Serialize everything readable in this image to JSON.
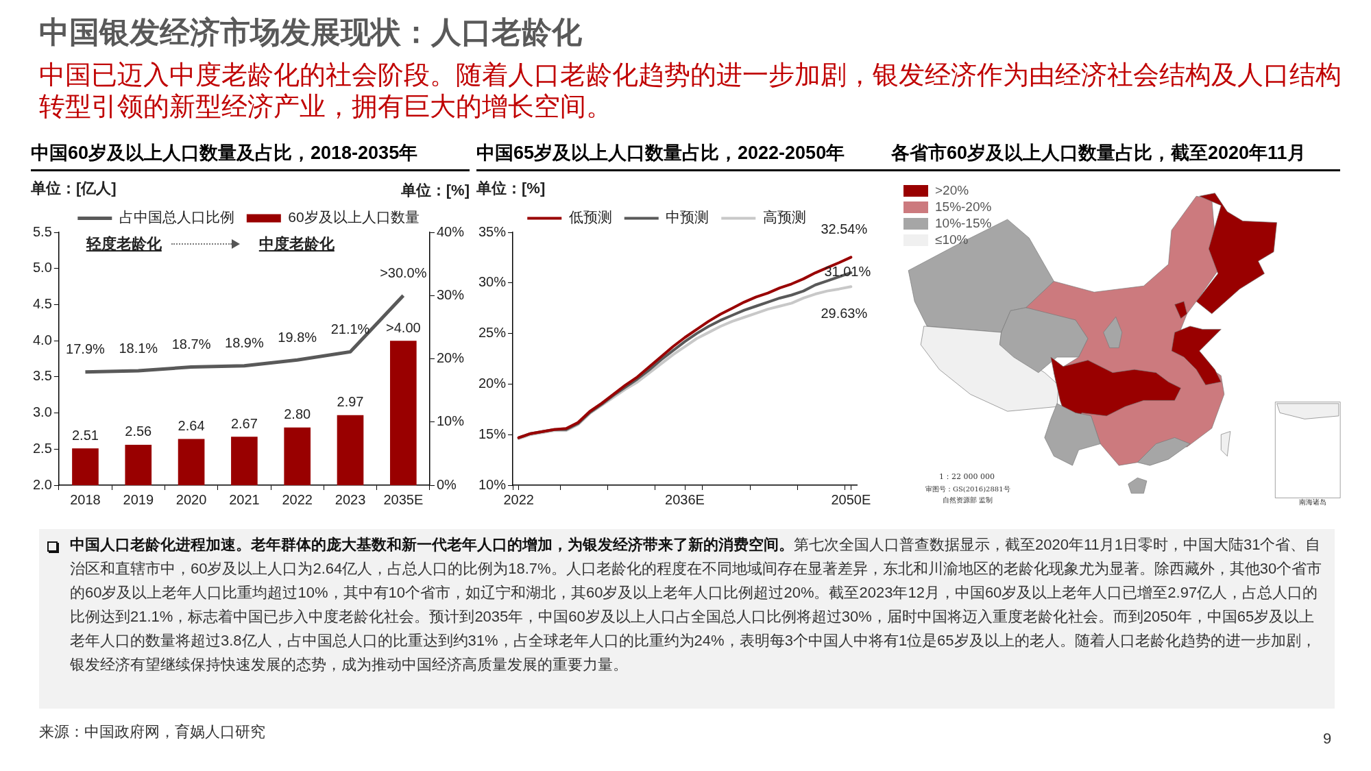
{
  "chart_data": [
    {
      "type": "other",
      "title": "中国银发经济市场发展现状：人口老龄化",
      "subtitle": "中国已迈入中度老龄化的社会阶段。随着人口老龄化趋势的进一步加剧，银发经济作为由经济社会结构及人口结构转型引领的新型经济产业，拥有巨大的增长空间。",
      "annotations": [
        "中国人口老龄化进程加速。老年群体的庞大基数和新一代老年人口的增加，为银发经济带来了新的消费空间。",
        "第七次全国人口普查数据显示，截至2020年11月1日零时，中国大陆31个省、自治区和直辖市中，60岁及以上人口为2.64亿人，占总人口的比例为18.7%。人口老龄化的程度在不同地域间存在显著差异，东北和川渝地区的老龄化现象尤为显著。除西藏外，其他30个省市的60岁及以上老年人口比重均超过10%，其中有10个省市，如辽宁和湖北，其60岁及以上老年人口比例超过20%。截至2023年12月，中国60岁及以上老年人口已增至2.97亿人，占总人口的比例达到21.1%，标志着中国已步入中度老龄化社会。预计到2035年，中国60岁及以上人口占全国总人口比例将超过30%，届时中国将迈入重度老龄化社会。而到2050年，中国65岁及以上老年人口的数量将超过3.8亿人，占中国总人口的比重达到约31%，占全球老年人口的比重约为24%，表明每3个中国人中将有1位是65岁及以上的老人。随着人口老龄化趋势的进一步加剧，银发经济有望继续保持快速发展的态势，成为推动中国经济高质量发展的重要力量。",
        "来源：中国政府网，育娲人口研究",
        "9"
      ]
    },
    {
      "type": "bar",
      "title": "中国60岁及以上人口数量及占比，2018-2035年",
      "categories": [
        "2018",
        "2019",
        "2020",
        "2021",
        "2022",
        "2023",
        "2035E"
      ],
      "series": [
        {
          "name": "60岁及以上人口数量",
          "type": "bar",
          "color": "#990000",
          "values": [
            2.51,
            2.56,
            2.64,
            2.67,
            2.8,
            2.97,
            4.0
          ],
          "value_labels": [
            "2.51",
            "2.56",
            "2.64",
            "2.67",
            "2.80",
            "2.97",
            ">4.00"
          ]
        },
        {
          "name": "占中国总人口比例",
          "type": "line",
          "axis": "y2",
          "color": "#595959",
          "values": [
            17.9,
            18.1,
            18.7,
            18.9,
            19.8,
            21.1,
            30.0
          ],
          "value_labels": [
            "17.9%",
            "18.1%",
            "18.7%",
            "18.9%",
            "19.8%",
            "21.1%",
            ">30.0%"
          ]
        }
      ],
      "ylim": [
        2,
        5.5
      ],
      "yticks": [
        {
          "value": 2,
          "label": "2.0"
        },
        {
          "value": 2.5,
          "label": "2.5"
        },
        {
          "value": 3,
          "label": "3.0"
        },
        {
          "value": 3.5,
          "label": "3.5"
        },
        {
          "value": 4,
          "label": "4.0"
        },
        {
          "value": 4.5,
          "label": "4.5"
        },
        {
          "value": 5,
          "label": "5.0"
        },
        {
          "value": 5.5,
          "label": "5.5"
        }
      ],
      "y2lim": [
        0,
        40
      ],
      "y2ticks": [
        {
          "value": 0,
          "label": "0%"
        },
        {
          "value": 10,
          "label": "10%"
        },
        {
          "value": 20,
          "label": "20%"
        },
        {
          "value": 30,
          "label": "30%"
        },
        {
          "value": 40,
          "label": "40%"
        }
      ],
      "legend": "top",
      "annotations": [
        "单位：[亿人]",
        "单位：[%]",
        "轻度老龄化",
        "中度老龄化"
      ]
    },
    {
      "type": "line",
      "title": "中国65岁及以上人口数量占比，2022-2050年",
      "x": [
        2022,
        2023,
        2024,
        2025,
        2026,
        2027,
        2028,
        2029,
        2030,
        2031,
        2032,
        2033,
        2034,
        2035,
        2036,
        2037,
        2038,
        2039,
        2040,
        2041,
        2042,
        2043,
        2044,
        2045,
        2046,
        2047,
        2048,
        2049,
        2050
      ],
      "series": [
        {
          "name": "低预测",
          "color": "#990000",
          "values": [
            14.7,
            15.1,
            15.3,
            15.5,
            15.6,
            16.2,
            17.3,
            18.1,
            19.0,
            19.9,
            20.7,
            21.7,
            22.7,
            23.7,
            24.6,
            25.4,
            26.2,
            26.9,
            27.5,
            28.1,
            28.6,
            29.0,
            29.5,
            29.9,
            30.4,
            31.0,
            31.5,
            32.0,
            32.54
          ],
          "value_labels": [
            null,
            null,
            null,
            null,
            null,
            null,
            null,
            null,
            null,
            null,
            null,
            null,
            null,
            null,
            null,
            null,
            null,
            null,
            null,
            null,
            null,
            null,
            null,
            null,
            null,
            null,
            null,
            null,
            "32.54%"
          ]
        },
        {
          "name": "中预测",
          "color": "#595959",
          "values": [
            14.7,
            15.1,
            15.3,
            15.5,
            15.5,
            16.1,
            17.2,
            18.0,
            18.9,
            19.7,
            20.5,
            21.4,
            22.4,
            23.3,
            24.2,
            25.0,
            25.7,
            26.3,
            26.8,
            27.3,
            27.7,
            28.1,
            28.5,
            28.8,
            29.2,
            29.8,
            30.2,
            30.6,
            31.01
          ],
          "value_labels": [
            null,
            null,
            null,
            null,
            null,
            null,
            null,
            null,
            null,
            null,
            null,
            null,
            null,
            null,
            null,
            null,
            null,
            null,
            null,
            null,
            null,
            null,
            null,
            null,
            null,
            null,
            null,
            null,
            "31.01%"
          ]
        },
        {
          "name": "高预测",
          "color": "#c8c8c8",
          "values": [
            14.6,
            15.0,
            15.2,
            15.4,
            15.4,
            16.0,
            17.1,
            17.9,
            18.7,
            19.5,
            20.2,
            21.1,
            22.0,
            22.9,
            23.7,
            24.5,
            25.1,
            25.7,
            26.2,
            26.6,
            27.0,
            27.4,
            27.7,
            28.0,
            28.5,
            28.9,
            29.2,
            29.4,
            29.63
          ],
          "value_labels": [
            null,
            null,
            null,
            null,
            null,
            null,
            null,
            null,
            null,
            null,
            null,
            null,
            null,
            null,
            null,
            null,
            null,
            null,
            null,
            null,
            null,
            null,
            null,
            null,
            null,
            null,
            null,
            null,
            "29.63%"
          ]
        }
      ],
      "xlim": [
        2021.5,
        2050.5
      ],
      "xticks": [
        {
          "value": 2021.5,
          "label": null
        },
        {
          "value": 2022,
          "label": "2022"
        },
        {
          "value": 2025.5,
          "label": null
        },
        {
          "value": 2029.5,
          "label": null
        },
        {
          "value": 2033.5,
          "label": null
        },
        {
          "value": 2036,
          "label": "2036E"
        },
        {
          "value": 2037.5,
          "label": null
        },
        {
          "value": 2041.5,
          "label": null
        },
        {
          "value": 2045.5,
          "label": null
        },
        {
          "value": 2049.5,
          "label": null
        },
        {
          "value": 2050,
          "label": "2050E"
        }
      ],
      "ylim": [
        10,
        35
      ],
      "yticks": [
        {
          "value": 10,
          "label": "10%"
        },
        {
          "value": 15,
          "label": "15%"
        },
        {
          "value": 20,
          "label": "20%"
        },
        {
          "value": 25,
          "label": "25%"
        },
        {
          "value": 30,
          "label": "30%"
        },
        {
          "value": 35,
          "label": "35%"
        }
      ],
      "legend": "top",
      "annotations": [
        "单位：[%]"
      ]
    },
    {
      "type": "other",
      "title": "各省市60岁及以上人口数量占比，截至2020年11月",
      "categories": [
        ">20%",
        "15%-20%",
        "10%-15%",
        "≤10%"
      ],
      "colors": [
        "#990000",
        "#cc7a7e",
        "#a6a6a6",
        "#f0f0f0"
      ],
      "annotations": [
        "1：22 000 000",
        "审图号：GS(2016)2881号",
        "自然资源部 监制",
        "南海诸岛"
      ]
    }
  ]
}
